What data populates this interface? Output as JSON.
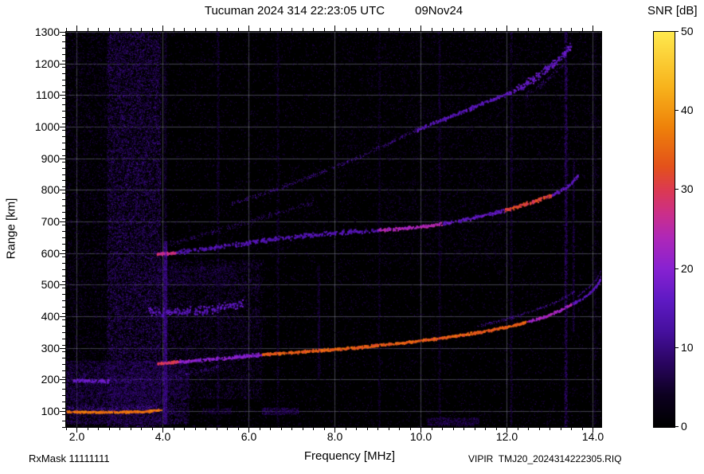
{
  "header": {
    "title_main": "Tucuman 2024 314 22:23:05 UTC",
    "title_date": "09Nov24"
  },
  "colorbar": {
    "label": "SNR [dB]",
    "ticks": [
      0,
      10,
      20,
      30,
      40,
      50
    ],
    "min": 0,
    "max": 50
  },
  "axes": {
    "x_label": "Frequency [MHz]",
    "y_label": "Range [km]"
  },
  "footer": {
    "rxmask": "RxMask 11111111",
    "file_id": "VIPIR  TMJ20_2024314222305.RIQ"
  },
  "chart_data": {
    "type": "heatmap",
    "title": "Tucuman 2024 314 22:23:05 UTC   09Nov24",
    "xlabel": "Frequency [MHz]",
    "ylabel": "Range [km]",
    "colorbar_label": "SNR [dB]",
    "xlim": [
      1.75,
      14.2
    ],
    "ylim": [
      50,
      1300
    ],
    "xticks": [
      2,
      4,
      6,
      8,
      10,
      12,
      14
    ],
    "x_minor_step": 0.25,
    "yticks": [
      100,
      200,
      300,
      400,
      500,
      600,
      700,
      800,
      900,
      1000,
      1100,
      1200,
      1300
    ],
    "y_minor_step": 20,
    "snr_range": [
      0,
      50
    ],
    "grid_on": true,
    "grid_color": "#9090a8",
    "grid_alpha": 0.45,
    "background": "#000000",
    "colormap_stops": [
      [
        0.0,
        "#000000"
      ],
      [
        0.08,
        "#0d0121"
      ],
      [
        0.16,
        "#2a0560"
      ],
      [
        0.24,
        "#46109e"
      ],
      [
        0.32,
        "#5f1ac4"
      ],
      [
        0.4,
        "#8822d2"
      ],
      [
        0.48,
        "#b028b8"
      ],
      [
        0.54,
        "#cc2f8a"
      ],
      [
        0.6,
        "#dc3a52"
      ],
      [
        0.66,
        "#e4521b"
      ],
      [
        0.76,
        "#ef830a"
      ],
      [
        0.86,
        "#f8b31c"
      ],
      [
        1.0,
        "#ffe94e"
      ]
    ],
    "noise": {
      "seed": 20241109,
      "regions": [
        {
          "f0": 1.75,
          "f1": 14.2,
          "r0": 50,
          "r1": 1300,
          "count": 22000,
          "snr": [
            2,
            9
          ]
        },
        {
          "f0": 2.7,
          "f1": 3.95,
          "r0": 50,
          "r1": 1300,
          "count": 15000,
          "snr": [
            3,
            14
          ]
        },
        {
          "f0": 1.75,
          "f1": 2.7,
          "r0": 50,
          "r1": 1300,
          "count": 3000,
          "snr": [
            2,
            9
          ]
        },
        {
          "f0": 1.75,
          "f1": 4.6,
          "r0": 60,
          "r1": 260,
          "count": 6000,
          "snr": [
            4,
            12
          ]
        },
        {
          "f0": 3.9,
          "f1": 6.3,
          "r0": 140,
          "r1": 580,
          "count": 5000,
          "snr": [
            3,
            11
          ]
        },
        {
          "f0": 8.0,
          "f1": 14.2,
          "r0": 840,
          "r1": 1300,
          "count": 3000,
          "snr": [
            2,
            8
          ]
        },
        {
          "f0": 9.0,
          "f1": 12.1,
          "r0": 560,
          "r1": 830,
          "count": 1500,
          "snr": [
            2,
            8
          ]
        },
        {
          "f0": 3.8,
          "f1": 5.7,
          "r0": 495,
          "r1": 560,
          "count": 600,
          "snr": [
            4,
            11
          ]
        },
        {
          "f0": 10.15,
          "f1": 11.35,
          "r0": 56,
          "r1": 80,
          "count": 500,
          "snr": [
            4,
            11
          ]
        },
        {
          "f0": 6.3,
          "f1": 7.15,
          "r0": 90,
          "r1": 112,
          "count": 300,
          "snr": [
            5,
            12
          ]
        },
        {
          "f0": 4.9,
          "f1": 5.6,
          "r0": 92,
          "r1": 110,
          "count": 180,
          "snr": [
            4,
            10
          ]
        }
      ]
    },
    "vertical_stripes": [
      {
        "f": 4.05,
        "fw": 0.08,
        "r0": 60,
        "r1": 640,
        "count": 2200,
        "snr": [
          5,
          15
        ]
      },
      {
        "f": 4.05,
        "fw": 0.06,
        "r0": 640,
        "r1": 1300,
        "count": 500,
        "snr": [
          3,
          9
        ]
      },
      {
        "f": 5.28,
        "fw": 0.05,
        "r0": 50,
        "r1": 1300,
        "count": 900,
        "snr": [
          3,
          9
        ]
      },
      {
        "f": 6.67,
        "fw": 0.05,
        "r0": 50,
        "r1": 1300,
        "count": 800,
        "snr": [
          3,
          9
        ]
      },
      {
        "f": 7.62,
        "fw": 0.05,
        "r0": 200,
        "r1": 560,
        "count": 350,
        "snr": [
          3,
          9
        ]
      },
      {
        "f": 9.03,
        "fw": 0.05,
        "r0": 50,
        "r1": 1300,
        "count": 700,
        "snr": [
          3,
          8
        ]
      },
      {
        "f": 10.43,
        "fw": 0.05,
        "r0": 50,
        "r1": 1300,
        "count": 800,
        "snr": [
          3,
          9
        ]
      },
      {
        "f": 12.1,
        "fw": 0.05,
        "r0": 50,
        "r1": 1300,
        "count": 900,
        "snr": [
          3,
          9
        ]
      },
      {
        "f": 13.37,
        "fw": 0.06,
        "r0": 50,
        "r1": 1300,
        "count": 1500,
        "snr": [
          5,
          12
        ]
      },
      {
        "f": 13.55,
        "fw": 0.04,
        "r0": 350,
        "r1": 900,
        "count": 400,
        "snr": [
          4,
          10
        ]
      },
      {
        "f": 14.05,
        "fw": 0.05,
        "r0": 50,
        "r1": 1300,
        "count": 500,
        "snr": [
          3,
          8
        ]
      }
    ],
    "traces": [
      {
        "name": "e-layer",
        "snr": 36,
        "jitter": 3,
        "size": 2,
        "density": 2.6,
        "points": [
          [
            1.75,
            100
          ],
          [
            2.6,
            99
          ],
          [
            3.5,
            100
          ],
          [
            3.95,
            106
          ]
        ]
      },
      {
        "name": "e-layer-halo",
        "snr": 14,
        "jitter": 7,
        "size": 1,
        "density": 1.4,
        "points": [
          [
            1.75,
            112
          ],
          [
            2.7,
            108
          ],
          [
            3.9,
            116
          ]
        ]
      },
      {
        "name": "es-200",
        "snr": 13,
        "jitter": 10,
        "size": 1,
        "density": 1.3,
        "points": [
          [
            1.75,
            202
          ],
          [
            2.4,
            196
          ],
          [
            3.1,
            197
          ],
          [
            3.8,
            204
          ],
          [
            4.6,
            220
          ],
          [
            5.3,
            240
          ]
        ]
      },
      {
        "name": "es-200-bright",
        "snr": 17,
        "jitter": 5,
        "size": 2,
        "density": 1.6,
        "points": [
          [
            1.9,
            199
          ],
          [
            2.75,
            197
          ]
        ]
      },
      {
        "name": "clutter-160",
        "snr": 9,
        "jitter": 16,
        "size": 1,
        "density": 1.1,
        "points": [
          [
            1.75,
            158
          ],
          [
            2.9,
            152
          ],
          [
            4.3,
            162
          ]
        ]
      },
      {
        "name": "f-trace-start",
        "snr": 30,
        "jitter": 4,
        "size": 2,
        "density": 2.4,
        "points": [
          [
            3.85,
            252
          ],
          [
            4.35,
            258
          ]
        ]
      },
      {
        "name": "f-trace-low",
        "snr": 20,
        "jitter": 5,
        "size": 2,
        "density": 1.9,
        "points": [
          [
            4.35,
            258
          ],
          [
            5.3,
            268
          ],
          [
            6.3,
            281
          ]
        ]
      },
      {
        "name": "f-trace-main",
        "snr": 34,
        "jitter": 4,
        "size": 2,
        "density": 2.4,
        "points": [
          [
            6.3,
            281
          ],
          [
            7.3,
            291
          ],
          [
            8.3,
            301
          ],
          [
            9.3,
            314
          ],
          [
            10.3,
            330
          ],
          [
            11.3,
            350
          ],
          [
            12.0,
            368
          ],
          [
            12.45,
            383
          ]
        ]
      },
      {
        "name": "f-trace-upper",
        "snr": 23,
        "jitter": 4,
        "size": 2,
        "density": 1.9,
        "points": [
          [
            12.45,
            383
          ],
          [
            12.9,
            402
          ],
          [
            13.25,
            422
          ],
          [
            13.5,
            440
          ]
        ]
      },
      {
        "name": "f-trace-xmode",
        "snr": 13,
        "jitter": 5,
        "size": 1,
        "density": 1.3,
        "points": [
          [
            11.3,
            368
          ],
          [
            12.0,
            393
          ],
          [
            12.55,
            415
          ],
          [
            13.0,
            438
          ],
          [
            13.35,
            462
          ],
          [
            13.6,
            482
          ]
        ]
      },
      {
        "name": "f-tail-o",
        "snr": 15,
        "jitter": 4,
        "size": 2,
        "density": 1.5,
        "points": [
          [
            13.5,
            440
          ],
          [
            13.75,
            458
          ],
          [
            13.95,
            478
          ],
          [
            14.1,
            502
          ],
          [
            14.2,
            528
          ]
        ]
      },
      {
        "name": "f-tail-x",
        "snr": 12,
        "jitter": 4,
        "size": 1,
        "density": 1.2,
        "points": [
          [
            13.65,
            465
          ],
          [
            13.9,
            492
          ],
          [
            14.08,
            518
          ],
          [
            14.2,
            548
          ]
        ]
      },
      {
        "name": "hop2-start",
        "snr": 27,
        "jitter": 4,
        "size": 2,
        "density": 2.0,
        "points": [
          [
            3.85,
            598
          ],
          [
            4.3,
            604
          ]
        ]
      },
      {
        "name": "hop2-low",
        "snr": 14,
        "jitter": 7,
        "size": 2,
        "density": 1.5,
        "points": [
          [
            4.3,
            604
          ],
          [
            5.2,
            620
          ],
          [
            6.2,
            640
          ],
          [
            7.2,
            656
          ],
          [
            8.2,
            668
          ],
          [
            9.0,
            674
          ]
        ]
      },
      {
        "name": "hop2-mid",
        "snr": 24,
        "jitter": 5,
        "size": 2,
        "density": 1.9,
        "points": [
          [
            9.0,
            674
          ],
          [
            9.9,
            684
          ],
          [
            10.5,
            694
          ]
        ]
      },
      {
        "name": "hop2-high",
        "snr": 16,
        "jitter": 6,
        "size": 2,
        "density": 1.5,
        "points": [
          [
            10.5,
            694
          ],
          [
            11.3,
            716
          ],
          [
            11.95,
            738
          ]
        ]
      },
      {
        "name": "hop2-bright",
        "snr": 31,
        "jitter": 5,
        "size": 2,
        "density": 2.2,
        "points": [
          [
            11.95,
            738
          ],
          [
            12.5,
            760
          ],
          [
            13.05,
            785
          ]
        ]
      },
      {
        "name": "hop2-tail",
        "snr": 16,
        "jitter": 6,
        "size": 2,
        "density": 1.3,
        "points": [
          [
            13.05,
            785
          ],
          [
            13.4,
            812
          ],
          [
            13.65,
            848
          ]
        ]
      },
      {
        "name": "spread-f-420",
        "snr": 15,
        "jitter": 13,
        "size": 2,
        "density": 1.5,
        "points": [
          [
            3.65,
            420
          ],
          [
            4.2,
            412
          ],
          [
            4.8,
            416
          ],
          [
            5.4,
            432
          ],
          [
            5.85,
            444
          ]
        ]
      },
      {
        "name": "diag-mid",
        "snr": 11,
        "jitter": 9,
        "size": 1,
        "density": 1.1,
        "points": [
          [
            4.15,
            628
          ],
          [
            5.0,
            662
          ],
          [
            6.0,
            700
          ],
          [
            6.9,
            737
          ],
          [
            7.5,
            763
          ]
        ]
      },
      {
        "name": "hop3-diag",
        "snr": 13,
        "jitter": 7,
        "size": 1,
        "density": 1.3,
        "points": [
          [
            5.6,
            757
          ],
          [
            6.6,
            802
          ],
          [
            7.6,
            852
          ],
          [
            8.6,
            906
          ],
          [
            9.4,
            958
          ],
          [
            9.9,
            992
          ]
        ]
      },
      {
        "name": "hop3-diag-up",
        "snr": 15,
        "jitter": 6,
        "size": 2,
        "density": 1.4,
        "points": [
          [
            9.9,
            992
          ],
          [
            10.8,
            1040
          ],
          [
            11.7,
            1090
          ],
          [
            12.1,
            1110
          ]
        ]
      },
      {
        "name": "hop3-top-scatter",
        "snr": 16,
        "jitter": 13,
        "size": 2,
        "density": 1.7,
        "points": [
          [
            12.15,
            1115
          ],
          [
            12.6,
            1150
          ],
          [
            13.1,
            1205
          ],
          [
            13.5,
            1258
          ]
        ]
      },
      {
        "name": "hop3-top-scatter2",
        "snr": 12,
        "jitter": 10,
        "size": 1,
        "density": 1.1,
        "points": [
          [
            12.45,
            1100
          ],
          [
            12.9,
            1145
          ],
          [
            13.3,
            1195
          ]
        ]
      }
    ]
  }
}
